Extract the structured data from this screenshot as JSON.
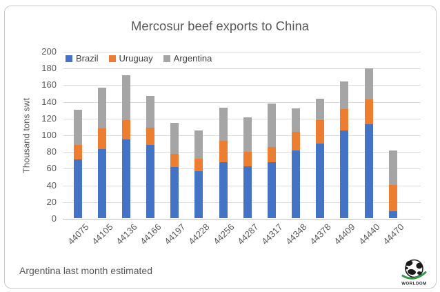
{
  "chart": {
    "title": "Mercosur beef exports to China",
    "y_axis_title": "Thousand tons swt",
    "footnote": "Argentina last month estimated",
    "logo_text": "WORLDOM",
    "colors": {
      "brazil": "#4472C4",
      "uruguay": "#ED7D31",
      "argentina": "#A5A5A5",
      "text": "#595959",
      "gridline": "#DCDCDC",
      "axis_line": "#BFBFBF",
      "frame_border": "#C9C9C9",
      "logo_swoosh_green": "#2E9B44"
    }
  },
  "chart_data": {
    "type": "bar",
    "stacked": true,
    "title": "Mercosur beef exports to China",
    "xlabel": "",
    "ylabel": "Thousand tons swt",
    "ylim": [
      0,
      200
    ],
    "ytick_step": 20,
    "grid": true,
    "legend_position": "top-left",
    "x_tick_rotation_deg": -45,
    "annotation": "Argentina last month estimated",
    "categories": [
      "44075",
      "44105",
      "44136",
      "44166",
      "44197",
      "44228",
      "44256",
      "44287",
      "44317",
      "44348",
      "44378",
      "44409",
      "44440",
      "44470"
    ],
    "series": [
      {
        "name": "Brazil",
        "color": "#4472C4",
        "values": [
          70,
          83,
          94,
          88,
          61,
          56,
          67,
          62,
          67,
          81,
          89,
          105,
          112,
          8
        ]
      },
      {
        "name": "Uruguay",
        "color": "#ED7D31",
        "values": [
          17,
          25,
          23,
          21,
          16,
          15,
          26,
          17,
          18,
          22,
          28,
          26,
          30,
          31
        ]
      },
      {
        "name": "Argentina",
        "color": "#A5A5A5",
        "values": [
          42,
          49,
          54,
          38,
          37,
          34,
          40,
          41,
          52,
          28,
          26,
          33,
          37,
          41
        ]
      }
    ],
    "stack_totals": [
      129,
      157,
      171,
      147,
      114,
      105,
      133,
      120,
      137,
      131,
      143,
      164,
      179,
      80
    ]
  }
}
